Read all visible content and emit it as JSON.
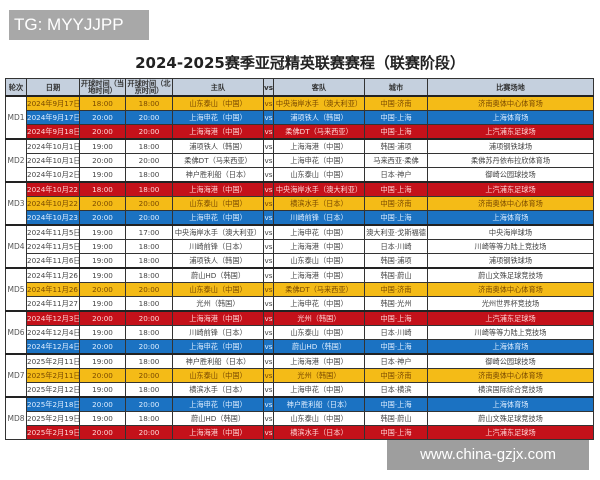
{
  "watermark_top": "TG: MYYJJPP",
  "watermark_bottom": "www.china-gzjx.com",
  "title": "2024-2025赛季亚冠精英联赛赛程（联赛阶段）",
  "colors": {
    "yellow": "#f4bb17",
    "blue": "#1b72c2",
    "red": "#c4111a",
    "header": "#c5d0de"
  },
  "headers": [
    "轮次",
    "日期",
    "开球时间（当地时间）",
    "开球时间（北京时间）",
    "主队",
    "vs",
    "客队",
    "城市",
    "比赛场地"
  ],
  "rounds": [
    {
      "name": "MD1",
      "matches": [
        [
          "2024年9月17日",
          "18:00",
          "18:00",
          "山东泰山（中国）",
          "vs",
          "中央海岸水手（澳大利亚）",
          "中国·济南",
          "济南奥体中心体育场",
          "yellow"
        ],
        [
          "2024年9月17日",
          "20:00",
          "20:00",
          "上海申花（中国）",
          "vs",
          "浦项铁人（韩国）",
          "中国·上海",
          "上海体育场",
          "blue"
        ],
        [
          "2024年9月18日",
          "20:00",
          "20:00",
          "上海海港（中国）",
          "vs",
          "柔佛DT（马来西亚）",
          "中国·上海",
          "上汽浦东足球场",
          "red"
        ]
      ]
    },
    {
      "name": "MD2",
      "matches": [
        [
          "2024年10月1日",
          "19:00",
          "18:00",
          "浦项铁人（韩国）",
          "vs",
          "上海海港（中国）",
          "韩国·浦项",
          "浦项钢铁球场",
          "white"
        ],
        [
          "2024年10月1日",
          "20:00",
          "20:00",
          "柔佛DT（马来西亚）",
          "vs",
          "上海申花（中国）",
          "马来西亚·柔佛",
          "柔佛苏丹依布拉欣体育场",
          "white"
        ],
        [
          "2024年10月2日",
          "19:00",
          "18:00",
          "神户胜利船（日本）",
          "vs",
          "山东泰山（中国）",
          "日本·神户",
          "御崎公园球技场",
          "white"
        ]
      ]
    },
    {
      "name": "MD3",
      "matches": [
        [
          "2024年10月22日",
          "18:00",
          "18:00",
          "上海海港（中国）",
          "vs",
          "中央海岸水手（澳大利亚）",
          "中国·上海",
          "上汽浦东足球场",
          "red"
        ],
        [
          "2024年10月22日",
          "20:00",
          "20:00",
          "山东泰山（中国）",
          "vs",
          "横滨水手（日本）",
          "中国·济南",
          "济南奥体中心体育场",
          "yellow"
        ],
        [
          "2024年10月23日",
          "20:00",
          "20:00",
          "上海申花（中国）",
          "vs",
          "川崎前锋（日本）",
          "中国·上海",
          "上海体育场",
          "blue"
        ]
      ]
    },
    {
      "name": "MD4",
      "matches": [
        [
          "2024年11月5日",
          "19:00",
          "17:00",
          "中央海岸水手（澳大利亚）",
          "vs",
          "上海申花（中国）",
          "澳大利亚·戈斯福德",
          "中央海岸球场",
          "white"
        ],
        [
          "2024年11月5日",
          "19:00",
          "18:00",
          "川崎前锋（日本）",
          "vs",
          "上海海港（中国）",
          "日本·川崎",
          "川崎等等力陆上竞技场",
          "white"
        ],
        [
          "2024年11月6日",
          "19:00",
          "18:00",
          "浦项铁人（韩国）",
          "vs",
          "山东泰山（中国）",
          "韩国·浦项",
          "浦项钢铁球场",
          "white"
        ]
      ]
    },
    {
      "name": "MD5",
      "matches": [
        [
          "2024年11月26日",
          "19:00",
          "18:00",
          "蔚山HD（韩国）",
          "vs",
          "上海海港（中国）",
          "韩国·蔚山",
          "蔚山文殊足球竞技场",
          "white"
        ],
        [
          "2024年11月26日",
          "20:00",
          "20:00",
          "山东泰山（中国）",
          "vs",
          "柔佛DT（马来西亚）",
          "中国·济南",
          "济南奥体中心体育场",
          "yellow"
        ],
        [
          "2024年11月27日",
          "19:00",
          "18:00",
          "光州（韩国）",
          "vs",
          "上海申花（中国）",
          "韩国·光州",
          "光州世界杯竞技场",
          "white"
        ]
      ]
    },
    {
      "name": "MD6",
      "matches": [
        [
          "2024年12月3日",
          "20:00",
          "20:00",
          "上海海港（中国）",
          "vs",
          "光州（韩国）",
          "中国·上海",
          "上汽浦东足球场",
          "red"
        ],
        [
          "2024年12月4日",
          "19:00",
          "18:00",
          "川崎前锋（日本）",
          "vs",
          "山东泰山（中国）",
          "日本·川崎",
          "川崎等等力陆上竞技场",
          "white"
        ],
        [
          "2024年12月4日",
          "20:00",
          "20:00",
          "上海申花（中国）",
          "vs",
          "蔚山HD（韩国）",
          "中国·上海",
          "上海体育场",
          "blue"
        ]
      ]
    },
    {
      "name": "MD7",
      "matches": [
        [
          "2025年2月11日",
          "19:00",
          "18:00",
          "神户胜利船（日本）",
          "vs",
          "上海海港（中国）",
          "日本·神户",
          "御崎公园球技场",
          "white"
        ],
        [
          "2025年2月11日",
          "20:00",
          "20:00",
          "山东泰山（中国）",
          "vs",
          "光州（韩国）",
          "中国·济南",
          "济南奥体中心体育场",
          "yellow"
        ],
        [
          "2025年2月12日",
          "19:00",
          "18:00",
          "横滨水手（日本）",
          "vs",
          "上海申花（中国）",
          "日本·横滨",
          "横滨国际综合竞技场",
          "white"
        ]
      ]
    },
    {
      "name": "MD8",
      "matches": [
        [
          "2025年2月18日",
          "20:00",
          "20:00",
          "上海申花（中国）",
          "vs",
          "神户胜利船（日本）",
          "中国·上海",
          "上海体育场",
          "blue"
        ],
        [
          "2025年2月19日",
          "19:00",
          "18:00",
          "蔚山HD（韩国）",
          "vs",
          "山东泰山（中国）",
          "韩国·蔚山",
          "蔚山文殊足球竞技场",
          "white"
        ],
        [
          "2025年2月19日",
          "20:00",
          "20:00",
          "上海海港（中国）",
          "vs",
          "横滨水手（日本）",
          "中国·上海",
          "上汽浦东足球场",
          "red"
        ]
      ]
    }
  ]
}
